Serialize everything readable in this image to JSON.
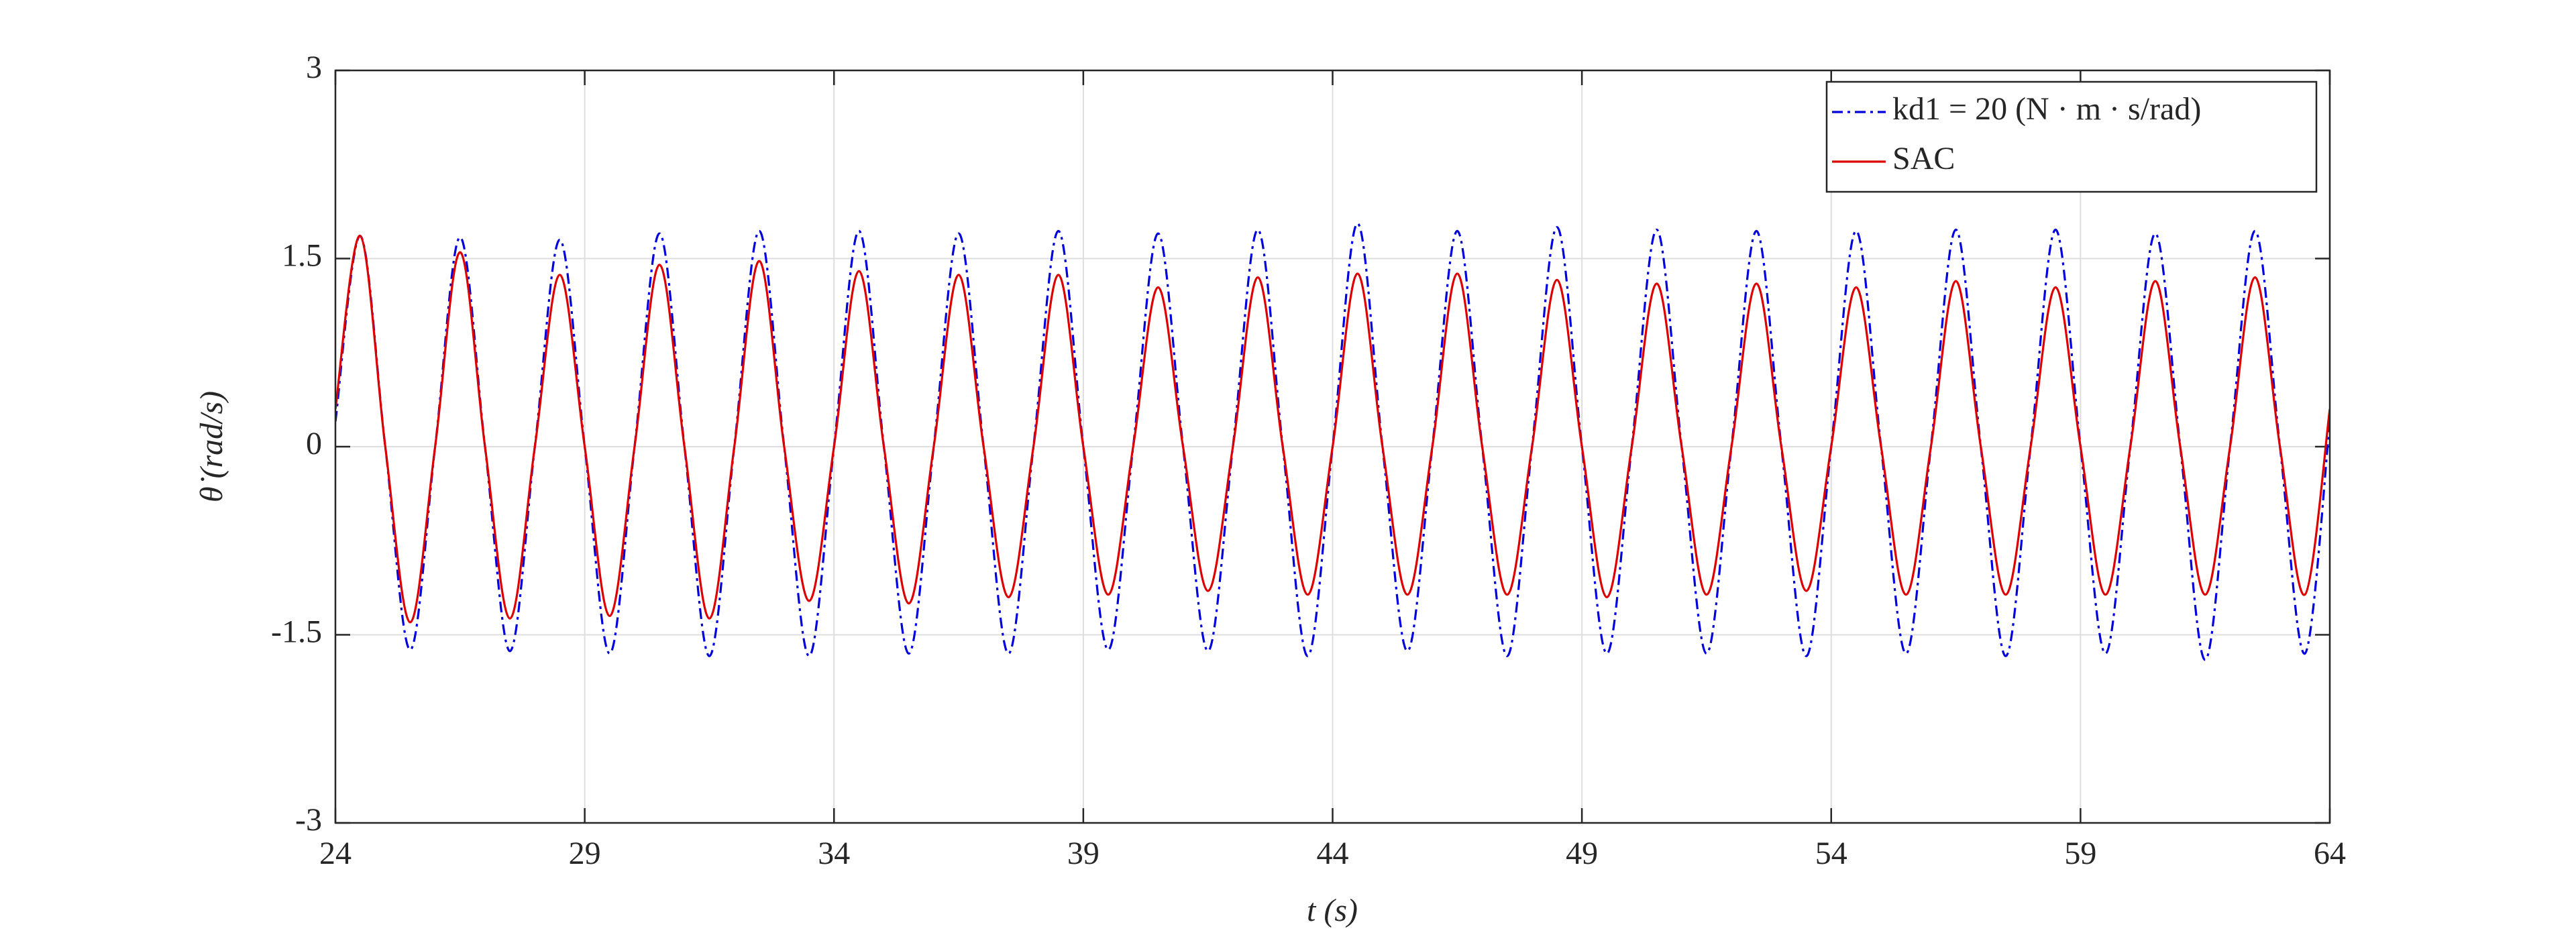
{
  "chart_data": {
    "type": "line",
    "xlabel": "t (s)",
    "ylabel": "θ̇ (rad/s)",
    "x": [
      24,
      24.5,
      25,
      25.5,
      26,
      26.5,
      27,
      27.5,
      28,
      28.5,
      29,
      29.5,
      30,
      30.5,
      31,
      31.5,
      32,
      32.5,
      33,
      33.5,
      34,
      34.5,
      35,
      35.5,
      36,
      36.5,
      37,
      37.5,
      38,
      38.5,
      39,
      39.5,
      40,
      40.5,
      41,
      41.5,
      42,
      42.5,
      43,
      43.5,
      44,
      44.5,
      45,
      45.5,
      46,
      46.5,
      47,
      47.5,
      48,
      48.5,
      49,
      49.5,
      50,
      50.5,
      51,
      51.5,
      52,
      52.5,
      53,
      53.5,
      54,
      54.5,
      55,
      55.5,
      56,
      56.5,
      57,
      57.5,
      58,
      58.5,
      59,
      59.5,
      60,
      60.5,
      61,
      61.5,
      62,
      62.5,
      63,
      63.5,
      64
    ],
    "series": [
      {
        "name": "kd1 = 20 (N · m · s/rad)",
        "color": "#0000dd",
        "dash": "dashdot",
        "values": [
          0.2,
          1.68,
          0,
          -1.62,
          0,
          1.67,
          0,
          -1.63,
          0,
          1.65,
          0,
          -1.65,
          0,
          1.7,
          0,
          -1.67,
          0,
          1.72,
          0,
          -1.67,
          0,
          1.72,
          0,
          -1.65,
          0,
          1.7,
          0,
          -1.65,
          0,
          1.72,
          0,
          -1.62,
          0,
          1.7,
          0,
          -1.63,
          0,
          1.73,
          0,
          -1.67,
          0,
          1.78,
          0,
          -1.63,
          0,
          1.72,
          0,
          -1.67,
          0,
          1.75,
          0,
          -1.65,
          0,
          1.73,
          0,
          -1.65,
          0,
          1.72,
          0,
          -1.67,
          0,
          1.72,
          0,
          -1.65,
          0,
          1.73,
          0,
          -1.67,
          0,
          1.73,
          0,
          -1.65,
          0,
          1.7,
          0,
          -1.7,
          0,
          1.72,
          0,
          -1.65,
          0.2
        ]
      },
      {
        "name": "SAC",
        "color": "#dd0000",
        "dash": "solid",
        "values": [
          0.3,
          1.68,
          0,
          -1.4,
          0,
          1.55,
          0,
          -1.37,
          0,
          1.37,
          0,
          -1.35,
          0,
          1.45,
          0,
          -1.37,
          0,
          1.48,
          0,
          -1.23,
          0,
          1.4,
          0,
          -1.25,
          0,
          1.37,
          0,
          -1.2,
          0,
          1.37,
          0,
          -1.18,
          0,
          1.27,
          0,
          -1.15,
          0,
          1.35,
          0,
          -1.18,
          0,
          1.38,
          0,
          -1.18,
          0,
          1.38,
          0,
          -1.18,
          0,
          1.33,
          0,
          -1.2,
          0,
          1.3,
          0,
          -1.18,
          0,
          1.3,
          0,
          -1.15,
          0,
          1.27,
          0,
          -1.18,
          0,
          1.32,
          0,
          -1.18,
          0,
          1.27,
          0,
          -1.18,
          0,
          1.32,
          0,
          -1.18,
          0,
          1.35,
          0,
          -1.18,
          0.3
        ]
      }
    ],
    "xlim": [
      24,
      64
    ],
    "xticks": [
      24,
      29,
      34,
      39,
      44,
      49,
      54,
      59,
      64
    ],
    "ylim": [
      -3,
      3
    ],
    "yticks": [
      -3,
      -1.5,
      0,
      1.5,
      3
    ],
    "grid": true,
    "legend": "upper right"
  }
}
